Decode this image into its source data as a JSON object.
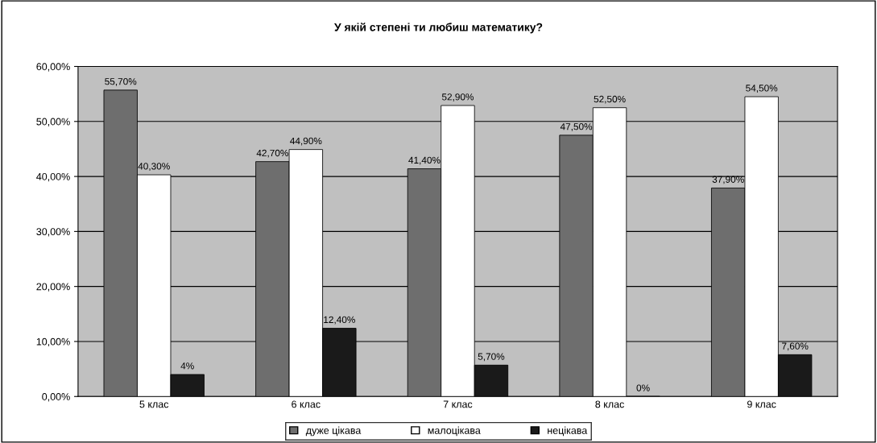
{
  "chart_data": {
    "type": "bar",
    "title": "У якій степені ти любиш математику?",
    "categories": [
      "5 клас",
      "6 клас",
      "7 клас",
      "8 клас",
      "9 клас"
    ],
    "series": [
      {
        "name": "дуже цікава",
        "color": "#6e6e6e",
        "values": [
          55.7,
          42.7,
          41.4,
          47.5,
          37.9
        ],
        "value_labels": [
          "55,70%",
          "42,70%",
          "41,40%",
          "47,50%",
          "37,90%"
        ]
      },
      {
        "name": "малоцікава",
        "color": "#ffffff",
        "values": [
          40.3,
          44.9,
          52.9,
          52.5,
          54.5
        ],
        "value_labels": [
          "40,30%",
          "44,90%",
          "52,90%",
          "52,50%",
          "54,50%"
        ]
      },
      {
        "name": "нецікава",
        "color": "#1a1a1a",
        "values": [
          4,
          12.4,
          5.7,
          0,
          7.6
        ],
        "value_labels": [
          "4%",
          "12,40%",
          "5,70%",
          "0%",
          "7,60%"
        ]
      }
    ],
    "ylim": [
      0,
      60
    ],
    "yticks": [
      {
        "value": 0,
        "label": "0,00%"
      },
      {
        "value": 10,
        "label": "10,00%"
      },
      {
        "value": 20,
        "label": "20,00%"
      },
      {
        "value": 30,
        "label": "30,00%"
      },
      {
        "value": 40,
        "label": "40,00%"
      },
      {
        "value": 50,
        "label": "50,00%"
      },
      {
        "value": 60,
        "label": "60,00%"
      }
    ],
    "grid": "y",
    "legend": "bottom"
  }
}
